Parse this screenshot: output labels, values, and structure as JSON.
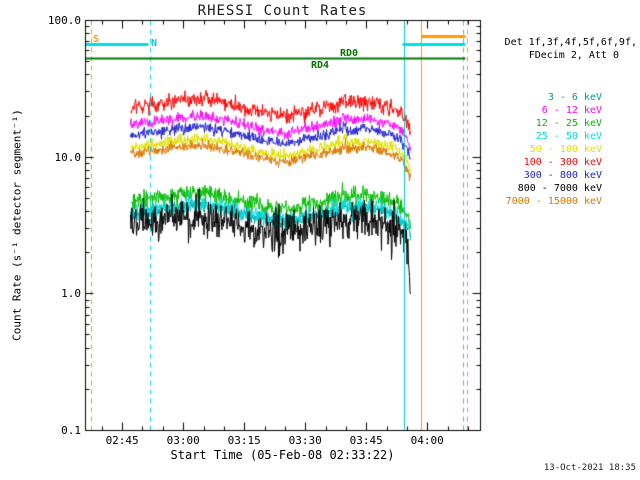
{
  "title": "RHESSI Count Rates",
  "x_axis": {
    "label": "Start Time (05-Feb-08 02:33:22)",
    "ticks": [
      "02:45",
      "03:00",
      "03:15",
      "03:30",
      "03:45",
      "04:00"
    ]
  },
  "y_axis": {
    "label": "Count Rate (s⁻¹ detector segment⁻¹)",
    "ticks": [
      "100.0",
      "10.0",
      "1.0",
      "0.1"
    ]
  },
  "legend": {
    "header1": "Det 1f,3f,4f,5f,6f,9f,",
    "header2": "FDecim 2, Att 0"
  },
  "flags": {
    "s": {
      "label": "S",
      "color": "#ff9900"
    },
    "n": {
      "label": "N",
      "color": "#00cccc"
    },
    "rd0": {
      "label": "RD0",
      "color": "#007700"
    },
    "rd4": {
      "label": "RD4",
      "color": "#007700"
    }
  },
  "timestamp": "13-Oct-2021 18:35",
  "chart_data": {
    "type": "line",
    "yscale": "log",
    "ylim": [
      0.1,
      100.0
    ],
    "grid": false,
    "legend_position": "right",
    "x_start": "05-Feb-08 02:33:22",
    "axis": {
      "t_min": 2.5,
      "t_max": 99.6,
      "x_major_minutes": [
        11.63,
        26.63,
        41.63,
        56.63,
        71.63,
        86.63
      ],
      "x_minor_step": 5,
      "y_major": [
        100,
        10,
        1,
        0.1
      ]
    },
    "data_t_range": [
      13.56,
      82.5
    ],
    "shape": [
      [
        13.56,
        0.95
      ],
      [
        16,
        0.98
      ],
      [
        20,
        1.02
      ],
      [
        25,
        1.07
      ],
      [
        28,
        1.1
      ],
      [
        31,
        1.11
      ],
      [
        34,
        1.08
      ],
      [
        38,
        1.02
      ],
      [
        42,
        0.95
      ],
      [
        46,
        0.89
      ],
      [
        50,
        0.85
      ],
      [
        53,
        0.85
      ],
      [
        56,
        0.89
      ],
      [
        60,
        0.95
      ],
      [
        63,
        1.0
      ],
      [
        65,
        1.03
      ],
      [
        66.2,
        1.13
      ],
      [
        67,
        1.03
      ],
      [
        69,
        1.05
      ],
      [
        71,
        1.08
      ],
      [
        73,
        1.06
      ],
      [
        75,
        1.02
      ],
      [
        77,
        0.98
      ],
      [
        79,
        0.92
      ],
      [
        80.8,
        0.83
      ],
      [
        81.8,
        0.73
      ],
      [
        82.5,
        0.63
      ]
    ],
    "series": [
      {
        "name": "3 - 6 keV",
        "color": "#009999",
        "base": 4.0,
        "sigma": 0.05
      },
      {
        "name": "6 - 12 keV",
        "color": "#ff00ff",
        "base": 18.0,
        "sigma": 0.05
      },
      {
        "name": "12 - 25 keV",
        "color": "#00bb00",
        "base": 4.9,
        "sigma": 0.08
      },
      {
        "name": "25 - 50 keV",
        "color": "#00dddd",
        "base": 4.1,
        "sigma": 0.08
      },
      {
        "name": "50 - 100 keV",
        "color": "#e0e000",
        "base": 12.2,
        "sigma": 0.05
      },
      {
        "name": "100 - 300 keV",
        "color": "#ff0000",
        "base": 24.0,
        "sigma": 0.06
      },
      {
        "name": "300 - 800 keV",
        "color": "#2222cc",
        "base": 15.0,
        "sigma": 0.045
      },
      {
        "name": "800 - 7000 keV",
        "color": "#000000",
        "base": 3.3,
        "sigma": 0.16,
        "spiky": true,
        "tail": [
          [
            81.2,
            1.0
          ],
          [
            82.1,
            0.7
          ],
          [
            82.5,
            0.27
          ]
        ]
      },
      {
        "name": "7000 - 15000 keV",
        "color": "#d97700",
        "base": 11.0,
        "sigma": 0.045
      }
    ],
    "annotations": {
      "vlines": [
        {
          "t": 4.0,
          "color": "#ff9900",
          "dashed": true
        },
        {
          "t": 18.5,
          "color": "#00dddd",
          "dashed": true
        },
        {
          "t": 80.9,
          "color": "#00cccc",
          "dashed": false
        },
        {
          "t": 85.2,
          "color": "#ff9900",
          "dashed": false
        },
        {
          "t": 95.3,
          "color": "#00dddd",
          "dashed": true
        },
        {
          "t": 96.5,
          "color": "#ff9900",
          "dashed": true
        }
      ],
      "hsegments": [
        {
          "name": "night-bar-left",
          "t0": 2.5,
          "t1": 18.0,
          "v": 67,
          "color": "#00dddd",
          "lw": 3
        },
        {
          "name": "night-bar-right",
          "t0": 80.5,
          "t1": 96.0,
          "v": 67,
          "color": "#00dddd",
          "lw": 3
        },
        {
          "name": "saa-bar",
          "t0": 85.2,
          "t1": 96.0,
          "v": 76,
          "color": "#ff9900",
          "lw": 3
        },
        {
          "name": "rd-line",
          "t0": 2.5,
          "t1": 96.0,
          "v": 52.5,
          "color": "#007700",
          "lw": 2
        }
      ]
    }
  }
}
